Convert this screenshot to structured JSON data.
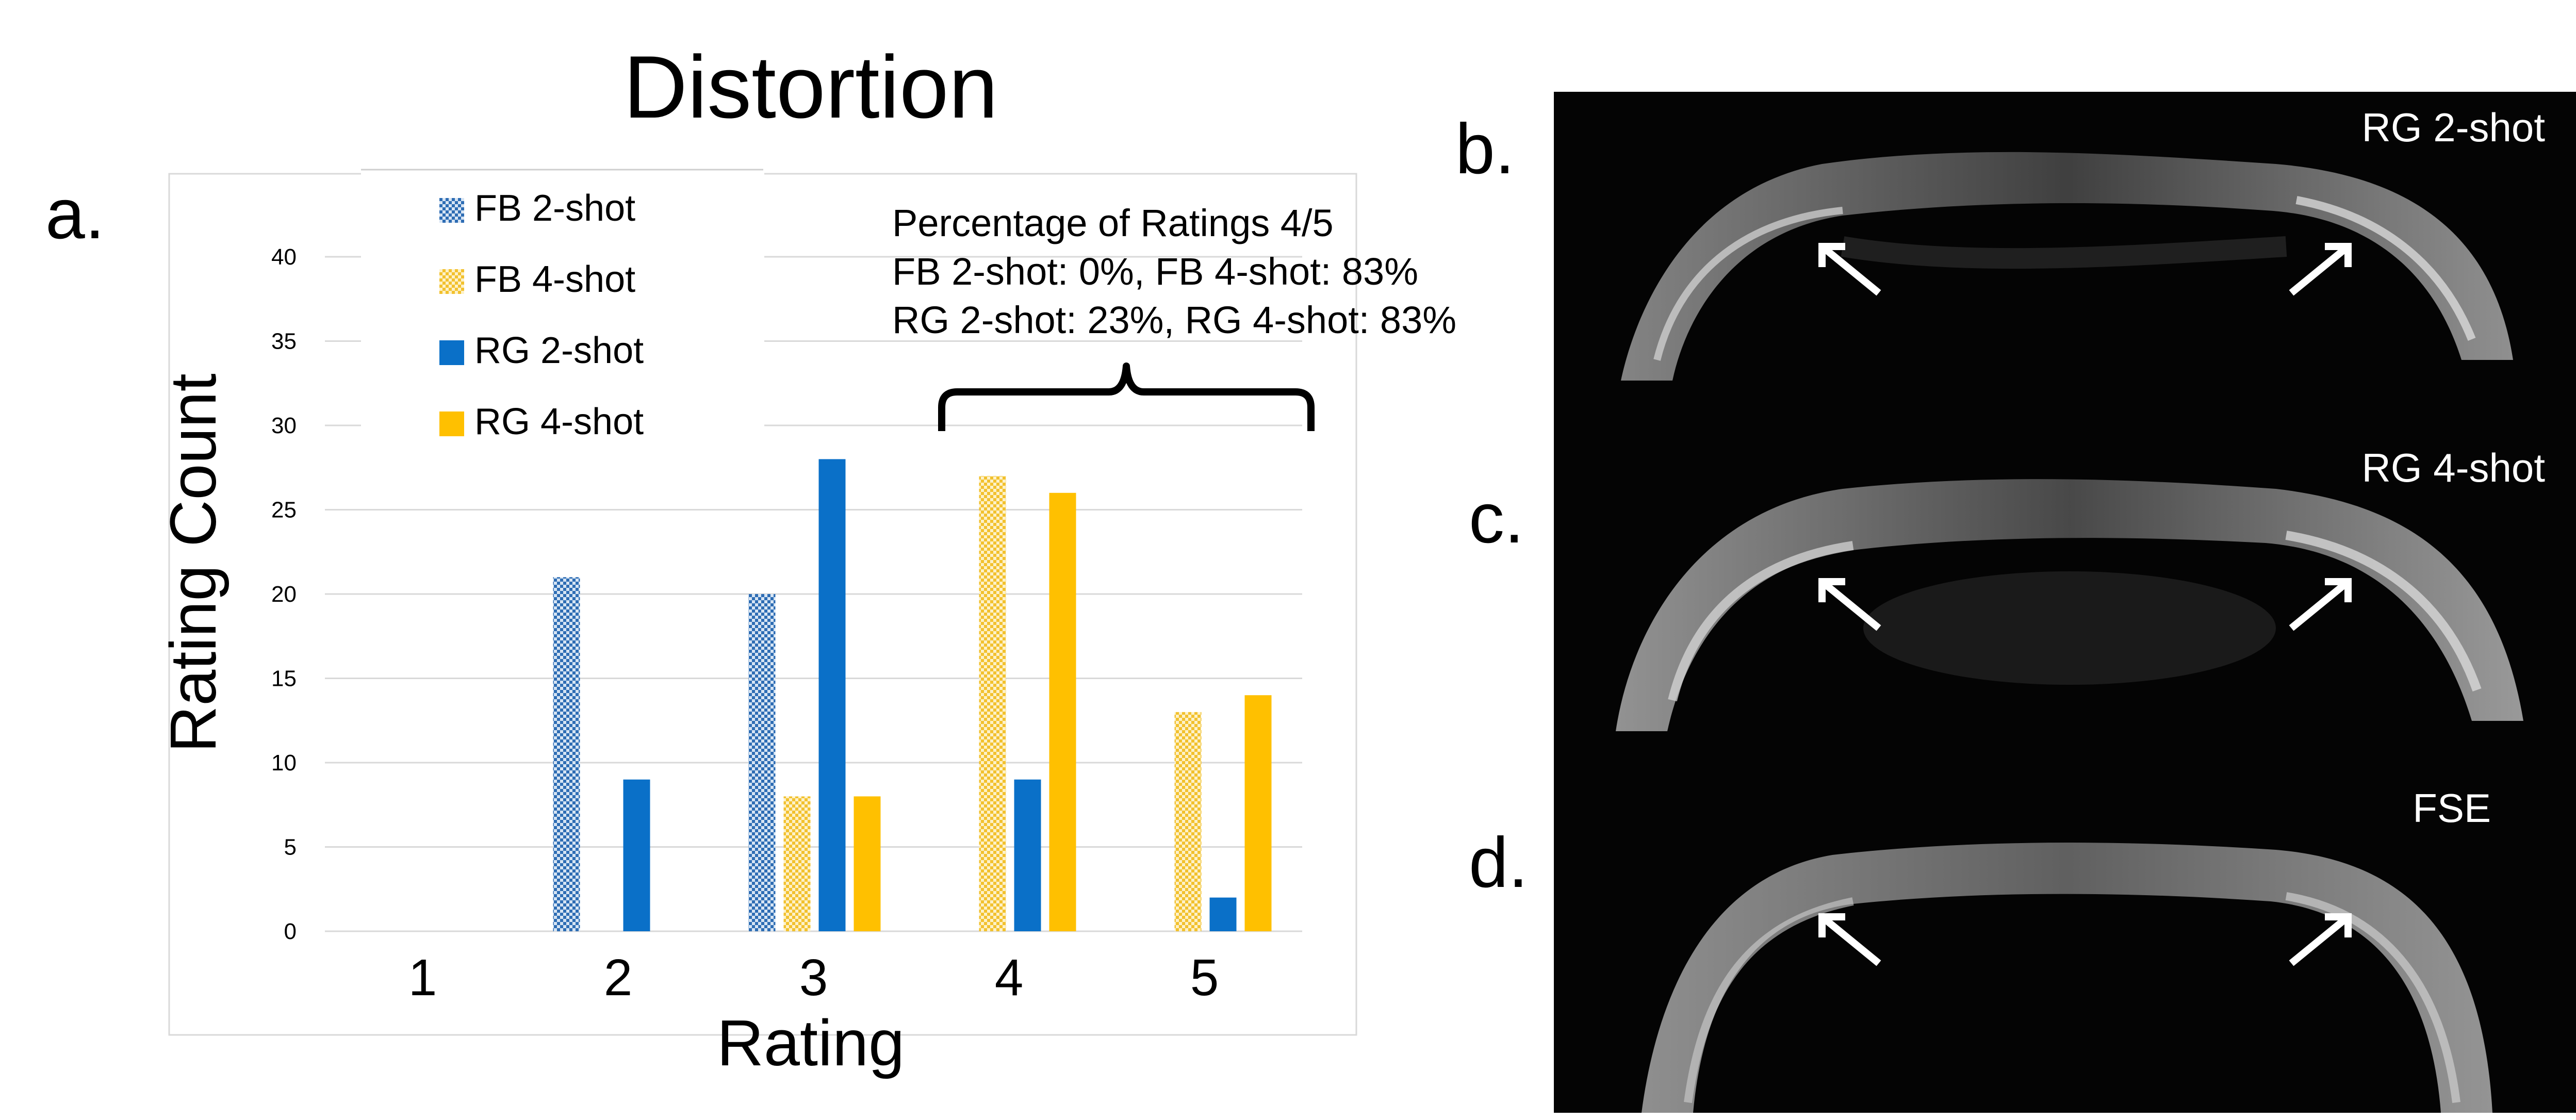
{
  "chart_data": {
    "type": "bar",
    "title": "Distortion",
    "panel_label": "a.",
    "xlabel": "Rating",
    "ylabel": "Rating Count",
    "categories": [
      "1",
      "2",
      "3",
      "4",
      "5"
    ],
    "ylim": [
      0,
      40
    ],
    "yticks": [
      0,
      5,
      10,
      15,
      20,
      25,
      30,
      35,
      40
    ],
    "grid": true,
    "legend_position": "top-left",
    "series": [
      {
        "name": "FB 2-shot",
        "pattern": "checker",
        "color": "#2E6DB4",
        "values": [
          0,
          21,
          20,
          0,
          0
        ]
      },
      {
        "name": "FB 4-shot",
        "pattern": "checker",
        "color": "#F2C12E",
        "values": [
          0,
          0,
          8,
          27,
          13
        ]
      },
      {
        "name": "RG 2-shot",
        "pattern": "solid",
        "color": "#0A70C8",
        "values": [
          0,
          9,
          28,
          9,
          2
        ]
      },
      {
        "name": "RG 4-shot",
        "pattern": "solid",
        "color": "#FFC000",
        "values": [
          0,
          0,
          8,
          26,
          14
        ]
      }
    ],
    "annotation": {
      "lines": [
        "Percentage of Ratings 4/5",
        "FB 2-shot: 0%, FB 4-shot: 83%",
        "RG 2-shot: 23%, RG 4-shot: 83%"
      ],
      "brace_over_categories": [
        "4",
        "5"
      ]
    }
  },
  "image_panels": [
    {
      "label": "b.",
      "title": "RG 2-shot"
    },
    {
      "label": "c.",
      "title": "RG 4-shot"
    },
    {
      "label": "d.",
      "title": "FSE"
    }
  ]
}
